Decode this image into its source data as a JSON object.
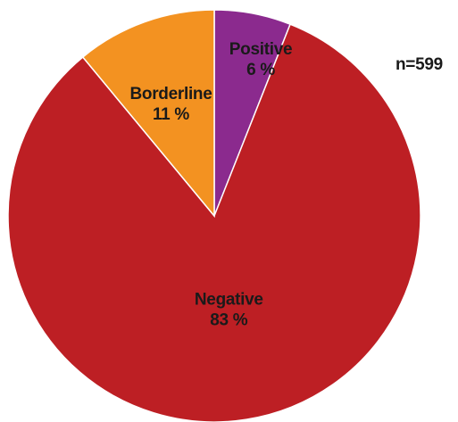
{
  "chart_data": {
    "type": "pie",
    "slices": [
      {
        "name": "Positive",
        "value": 6,
        "label": "6 %",
        "color": "#8B2A8E"
      },
      {
        "name": "Negative",
        "value": 83,
        "label": "83 %",
        "color": "#BD1F24"
      },
      {
        "name": "Borderline",
        "value": 11,
        "label": "11 %",
        "color": "#F39221"
      }
    ],
    "start": "top",
    "direction": "clockwise",
    "sample_size": "n=599"
  }
}
